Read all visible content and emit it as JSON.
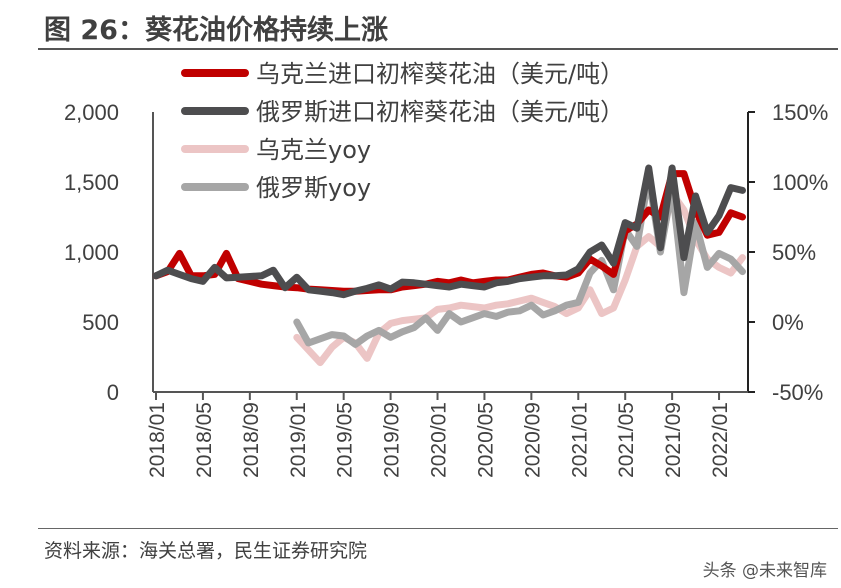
{
  "title": "图 26：葵花油价格持续上涨",
  "source": "资料来源：海关总署，民生证券研究院",
  "watermark": "头条 @未来智库",
  "chart_data": {
    "type": "line",
    "x": [
      "2018/01",
      "2018/02",
      "2018/03",
      "2018/04",
      "2018/05",
      "2018/06",
      "2018/07",
      "2018/08",
      "2018/09",
      "2018/10",
      "2018/11",
      "2018/12",
      "2019/01",
      "2019/02",
      "2019/03",
      "2019/04",
      "2019/05",
      "2019/06",
      "2019/07",
      "2019/08",
      "2019/09",
      "2019/10",
      "2019/11",
      "2019/12",
      "2020/01",
      "2020/02",
      "2020/03",
      "2020/04",
      "2020/05",
      "2020/06",
      "2020/07",
      "2020/08",
      "2020/09",
      "2020/10",
      "2020/11",
      "2020/12",
      "2021/01",
      "2021/02",
      "2021/03",
      "2021/04",
      "2021/05",
      "2021/06",
      "2021/07",
      "2021/08",
      "2021/09",
      "2021/10",
      "2021/11",
      "2021/12",
      "2022/01",
      "2022/02",
      "2022/03"
    ],
    "x_tick_labels": [
      "2018/01",
      "2018/05",
      "2018/09",
      "2019/01",
      "2019/05",
      "2019/09",
      "2020/01",
      "2020/05",
      "2020/09",
      "2021/01",
      "2021/05",
      "2021/09",
      "2022/01"
    ],
    "y_left": {
      "range": [
        0,
        2000
      ],
      "ticks": [
        "0",
        "500",
        "1,000",
        "1,500",
        "2,000"
      ]
    },
    "y_right": {
      "range": [
        -50,
        150
      ],
      "ticks": [
        "-50%",
        "0%",
        "50%",
        "100%",
        "150%"
      ]
    },
    "grid": false,
    "legend": "top",
    "series": [
      {
        "name": "乌克兰进口初榨葵花油（美元/吨）",
        "axis": "left",
        "color": "#c00000",
        "values": [
          830,
          860,
          990,
          830,
          830,
          840,
          990,
          810,
          790,
          770,
          760,
          750,
          745,
          735,
          730,
          725,
          720,
          720,
          725,
          730,
          730,
          750,
          760,
          770,
          790,
          780,
          800,
          780,
          790,
          800,
          800,
          820,
          840,
          850,
          830,
          820,
          850,
          950,
          900,
          840,
          1150,
          1200,
          1300,
          1250,
          1560,
          1560,
          1300,
          1120,
          1140,
          1280,
          1250
        ]
      },
      {
        "name": "俄罗斯进口初榨葵花油（美元/吨）",
        "axis": "left",
        "color": "#4d4d4f",
        "values": [
          830,
          870,
          840,
          810,
          790,
          890,
          815,
          820,
          825,
          830,
          870,
          745,
          820,
          730,
          720,
          710,
          695,
          720,
          740,
          765,
          735,
          785,
          780,
          770,
          760,
          750,
          770,
          760,
          750,
          780,
          790,
          810,
          820,
          830,
          830,
          836,
          880,
          1000,
          1050,
          920,
          1210,
          1170,
          1600,
          1030,
          1600,
          960,
          1400,
          1140,
          1260,
          1460,
          1440
        ]
      },
      {
        "name": "乌克兰yoy",
        "axis": "right",
        "color": "#ecc5c5",
        "values": [
          null,
          null,
          null,
          null,
          null,
          null,
          null,
          null,
          null,
          null,
          null,
          null,
          -11,
          -20,
          -29,
          -18,
          -11,
          -15,
          -26,
          -8,
          -1,
          1,
          2,
          3,
          9,
          10,
          12,
          11,
          10,
          12,
          13,
          15,
          17,
          14,
          11,
          6,
          10,
          23,
          6,
          10,
          30,
          54,
          61,
          54,
          92,
          80,
          59,
          45,
          39,
          35,
          46
        ]
      },
      {
        "name": "俄罗斯yoy",
        "axis": "right",
        "color": "#a6a6a6",
        "values": [
          null,
          null,
          null,
          null,
          null,
          null,
          null,
          null,
          null,
          null,
          null,
          null,
          0,
          -15,
          -12,
          -9,
          -10,
          -16,
          -10,
          -6,
          -11,
          -7,
          -4,
          3,
          -6,
          6,
          0,
          3,
          6,
          4,
          7,
          8,
          12,
          5,
          8,
          12,
          14,
          35,
          44,
          23,
          66,
          54,
          104,
          50,
          96,
          21,
          71,
          39,
          49,
          45,
          36
        ]
      }
    ]
  }
}
